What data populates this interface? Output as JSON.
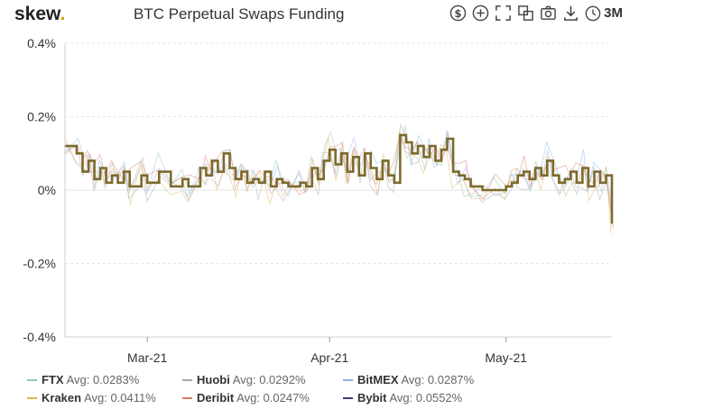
{
  "header": {
    "logo": "skew",
    "logo_dot": ".",
    "title": "BTC Perpetual Swaps Funding",
    "range_label": "3M"
  },
  "toolbar_icons": [
    "dollar-icon",
    "plus-circle-icon",
    "fullscreen-icon",
    "copy-icon",
    "camera-icon",
    "download-icon",
    "clock-icon"
  ],
  "chart_data": {
    "type": "line",
    "title": "BTC Perpetual Swaps Funding",
    "yunit": "%",
    "ylim": [
      -0.4,
      0.4
    ],
    "yticks": [
      0.4,
      0.2,
      0,
      -0.2,
      -0.4
    ],
    "ytick_labels": [
      "0.4%",
      "0.2%",
      "0%",
      "-0.2%",
      "-0.4%"
    ],
    "xlim": [
      "2021-02-15",
      "2021-05-19"
    ],
    "xticks": [
      {
        "label": "Mar-21",
        "date": "2021-03-01"
      },
      {
        "label": "Apr-21",
        "date": "2021-04-01"
      },
      {
        "label": "May-21",
        "date": "2021-05-01"
      }
    ],
    "grid": true,
    "legend_position": "bottom",
    "series": [
      {
        "name": "FTX",
        "avg_label": "Avg: 0.0283%",
        "color": "#8fc2c8"
      },
      {
        "name": "Huobi",
        "avg_label": "Avg: 0.0292%",
        "color": "#a9a9a9"
      },
      {
        "name": "BitMEX",
        "avg_label": "Avg: 0.0287%",
        "color": "#8fb2e0"
      },
      {
        "name": "Kraken",
        "avg_label": "Avg: 0.0411%",
        "color": "#e0b25a"
      },
      {
        "name": "Deribit",
        "avg_label": "Avg: 0.0247%",
        "color": "#dd7a64"
      },
      {
        "name": "Bybit",
        "avg_label": "Avg: 0.0552%",
        "color": "#3a3f7a",
        "points": [
          [
            "2021-02-15",
            0.12
          ],
          [
            "2021-02-17",
            0.1
          ],
          [
            "2021-02-18",
            0.05
          ],
          [
            "2021-02-19",
            0.08
          ],
          [
            "2021-02-20",
            0.03
          ],
          [
            "2021-02-21",
            0.06
          ],
          [
            "2021-02-22",
            0.02
          ],
          [
            "2021-02-23",
            0.04
          ],
          [
            "2021-02-24",
            0.02
          ],
          [
            "2021-02-25",
            0.05
          ],
          [
            "2021-02-26",
            0.01
          ],
          [
            "2021-02-28",
            0.04
          ],
          [
            "2021-03-01",
            0.02
          ],
          [
            "2021-03-03",
            0.05
          ],
          [
            "2021-03-05",
            0.01
          ],
          [
            "2021-03-07",
            0.03
          ],
          [
            "2021-03-08",
            0.01
          ],
          [
            "2021-03-10",
            0.06
          ],
          [
            "2021-03-11",
            0.04
          ],
          [
            "2021-03-12",
            0.08
          ],
          [
            "2021-03-13",
            0.05
          ],
          [
            "2021-03-14",
            0.1
          ],
          [
            "2021-03-15",
            0.06
          ],
          [
            "2021-03-16",
            0.03
          ],
          [
            "2021-03-17",
            0.05
          ],
          [
            "2021-03-18",
            0.02
          ],
          [
            "2021-03-19",
            0.03
          ],
          [
            "2021-03-20",
            0.02
          ],
          [
            "2021-03-21",
            0.05
          ],
          [
            "2021-03-22",
            0.01
          ],
          [
            "2021-03-23",
            0.03
          ],
          [
            "2021-03-24",
            0.02
          ],
          [
            "2021-03-25",
            0.01
          ],
          [
            "2021-03-27",
            0.02
          ],
          [
            "2021-03-28",
            0.01
          ],
          [
            "2021-03-29",
            0.06
          ],
          [
            "2021-03-30",
            0.03
          ],
          [
            "2021-03-31",
            0.08
          ],
          [
            "2021-04-01",
            0.11
          ],
          [
            "2021-04-02",
            0.07
          ],
          [
            "2021-04-03",
            0.1
          ],
          [
            "2021-04-04",
            0.05
          ],
          [
            "2021-04-05",
            0.09
          ],
          [
            "2021-04-06",
            0.04
          ],
          [
            "2021-04-07",
            0.1
          ],
          [
            "2021-04-08",
            0.06
          ],
          [
            "2021-04-09",
            0.03
          ],
          [
            "2021-04-10",
            0.08
          ],
          [
            "2021-04-11",
            0.04
          ],
          [
            "2021-04-12",
            0.02
          ],
          [
            "2021-04-13",
            0.15
          ],
          [
            "2021-04-14",
            0.13
          ],
          [
            "2021-04-15",
            0.1
          ],
          [
            "2021-04-16",
            0.12
          ],
          [
            "2021-04-17",
            0.09
          ],
          [
            "2021-04-18",
            0.12
          ],
          [
            "2021-04-19",
            0.08
          ],
          [
            "2021-04-20",
            0.11
          ],
          [
            "2021-04-21",
            0.14
          ],
          [
            "2021-04-22",
            0.05
          ],
          [
            "2021-04-23",
            0.04
          ],
          [
            "2021-04-24",
            0.03
          ],
          [
            "2021-04-25",
            0.01
          ],
          [
            "2021-04-27",
            0.0
          ],
          [
            "2021-04-29",
            0.0
          ],
          [
            "2021-05-01",
            0.01
          ],
          [
            "2021-05-02",
            0.02
          ],
          [
            "2021-05-03",
            0.04
          ],
          [
            "2021-05-04",
            0.05
          ],
          [
            "2021-05-05",
            0.03
          ],
          [
            "2021-05-06",
            0.06
          ],
          [
            "2021-05-07",
            0.04
          ],
          [
            "2021-05-08",
            0.08
          ],
          [
            "2021-05-09",
            0.04
          ],
          [
            "2021-05-10",
            0.02
          ],
          [
            "2021-05-11",
            0.03
          ],
          [
            "2021-05-12",
            0.05
          ],
          [
            "2021-05-13",
            0.02
          ],
          [
            "2021-05-14",
            0.06
          ],
          [
            "2021-05-15",
            0.01
          ],
          [
            "2021-05-16",
            0.05
          ],
          [
            "2021-05-17",
            0.02
          ],
          [
            "2021-05-18",
            0.04
          ],
          [
            "2021-05-19",
            -0.09
          ]
        ]
      }
    ]
  },
  "legend": {
    "row1": [
      {
        "name": "FTX",
        "value": "Avg: 0.0283%",
        "color": "#8fc2c8"
      },
      {
        "name": "Huobi",
        "value": "Avg: 0.0292%",
        "color": "#a9a9a9"
      },
      {
        "name": "BitMEX",
        "value": "Avg: 0.0287%",
        "color": "#8fb2e0"
      }
    ],
    "row2": [
      {
        "name": "Kraken",
        "value": "Avg: 0.0411%",
        "color": "#e0b25a"
      },
      {
        "name": "Deribit",
        "value": "Avg: 0.0247%",
        "color": "#dd7a64"
      },
      {
        "name": "Bybit",
        "value": "Avg: 0.0552%",
        "color": "#3a3f7a"
      }
    ]
  }
}
